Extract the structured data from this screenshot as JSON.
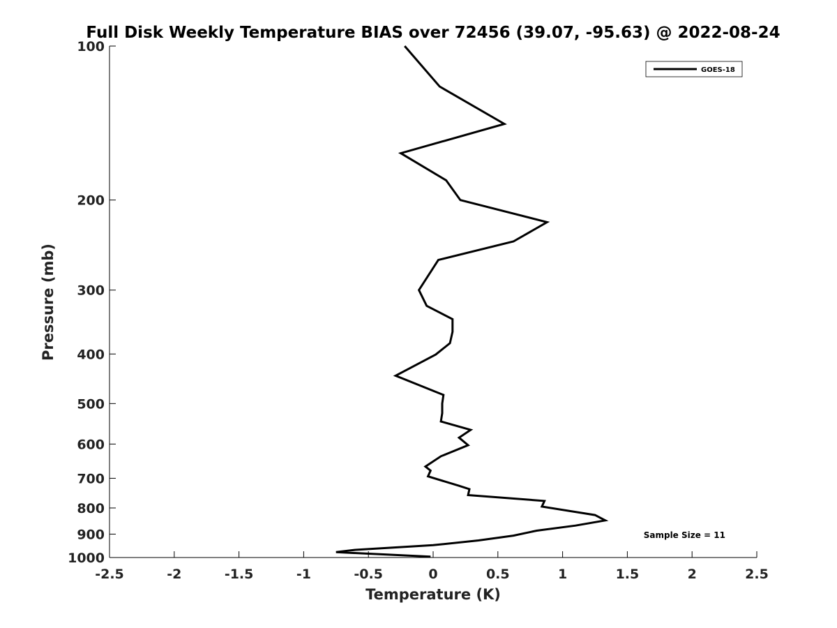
{
  "chart_data": {
    "type": "line",
    "title": "Full Disk Weekly Temperature BIAS over 72456 (39.07, -95.63) @ 2022-08-24",
    "xlabel": "Temperature (K)",
    "ylabel": "Pressure (mb)",
    "xlim": [
      -2.5,
      2.5
    ],
    "ylim": [
      100,
      1000
    ],
    "y_scale": "log",
    "y_reversed": true,
    "grid": false,
    "legend_position": "top-right",
    "x_ticks": [
      -2.5,
      -2,
      -1.5,
      -1,
      -0.5,
      0,
      0.5,
      1,
      1.5,
      2,
      2.5
    ],
    "x_tick_labels": [
      "-2.5",
      "-2",
      "-1.5",
      "-1",
      "-0.5",
      "0",
      "0.5",
      "1",
      "1.5",
      "2",
      "2.5"
    ],
    "y_ticks": [
      100,
      200,
      300,
      400,
      500,
      600,
      700,
      800,
      900,
      1000
    ],
    "y_tick_labels": [
      "100",
      "200",
      "300",
      "400",
      "500",
      "600",
      "700",
      "800",
      "900",
      "1000"
    ],
    "annotation": "Sample Size = 11",
    "series": [
      {
        "name": "GOES-18",
        "color": "#000000",
        "points": [
          {
            "x": -0.22,
            "y": 100
          },
          {
            "x": 0.05,
            "y": 120
          },
          {
            "x": 0.55,
            "y": 142
          },
          {
            "x": -0.25,
            "y": 162
          },
          {
            "x": 0.1,
            "y": 183
          },
          {
            "x": 0.21,
            "y": 200
          },
          {
            "x": 0.88,
            "y": 221
          },
          {
            "x": 0.62,
            "y": 241
          },
          {
            "x": 0.04,
            "y": 262
          },
          {
            "x": -0.11,
            "y": 300
          },
          {
            "x": -0.05,
            "y": 322
          },
          {
            "x": 0.15,
            "y": 342
          },
          {
            "x": 0.15,
            "y": 362
          },
          {
            "x": 0.13,
            "y": 381
          },
          {
            "x": 0.02,
            "y": 401
          },
          {
            "x": -0.29,
            "y": 441
          },
          {
            "x": 0.08,
            "y": 481
          },
          {
            "x": 0.07,
            "y": 500
          },
          {
            "x": 0.07,
            "y": 522
          },
          {
            "x": 0.06,
            "y": 542
          },
          {
            "x": 0.29,
            "y": 563
          },
          {
            "x": 0.2,
            "y": 583
          },
          {
            "x": 0.27,
            "y": 603
          },
          {
            "x": 0.06,
            "y": 634
          },
          {
            "x": -0.06,
            "y": 664
          },
          {
            "x": -0.02,
            "y": 676
          },
          {
            "x": -0.04,
            "y": 694
          },
          {
            "x": 0.2,
            "y": 724
          },
          {
            "x": 0.28,
            "y": 735
          },
          {
            "x": 0.27,
            "y": 755
          },
          {
            "x": 0.86,
            "y": 775
          },
          {
            "x": 0.84,
            "y": 795
          },
          {
            "x": 1.25,
            "y": 826
          },
          {
            "x": 1.33,
            "y": 846
          },
          {
            "x": 1.1,
            "y": 866
          },
          {
            "x": 0.8,
            "y": 886
          },
          {
            "x": 0.62,
            "y": 906
          },
          {
            "x": 0.35,
            "y": 926
          },
          {
            "x": 0.0,
            "y": 946
          },
          {
            "x": -0.6,
            "y": 966
          },
          {
            "x": -0.75,
            "y": 976
          },
          {
            "x": -0.02,
            "y": 996
          }
        ]
      }
    ]
  }
}
